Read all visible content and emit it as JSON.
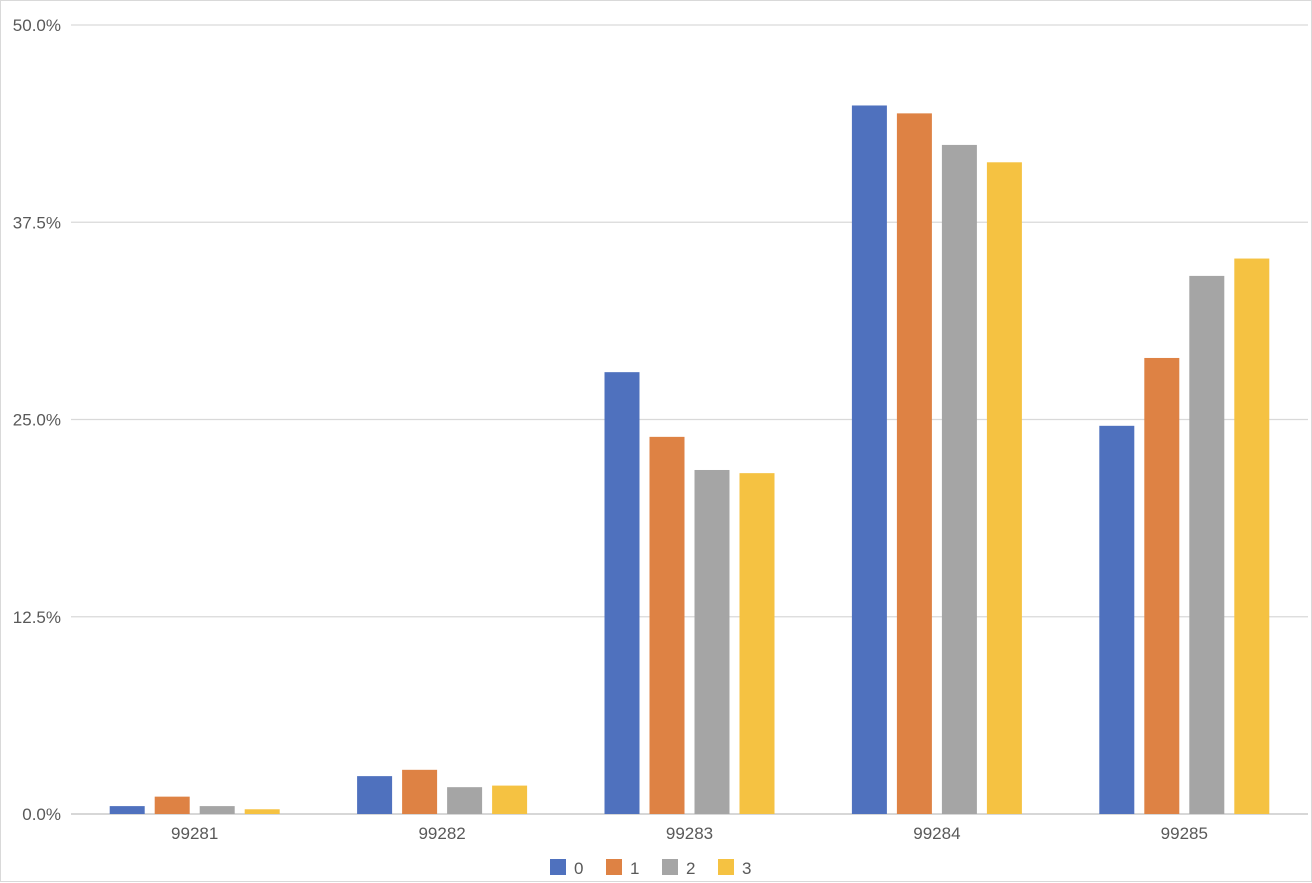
{
  "chart_data": {
    "type": "bar",
    "categories": [
      "99281",
      "99282",
      "99283",
      "99284",
      "99285"
    ],
    "series": [
      {
        "name": "0",
        "color": "#4f71be",
        "values": [
          0.5,
          2.4,
          28.0,
          44.9,
          24.6
        ]
      },
      {
        "name": "1",
        "color": "#de8244",
        "values": [
          1.1,
          2.8,
          23.9,
          44.4,
          28.9
        ]
      },
      {
        "name": "2",
        "color": "#a5a5a5",
        "values": [
          0.5,
          1.7,
          21.8,
          42.4,
          34.1
        ]
      },
      {
        "name": "3",
        "color": "#f5c242",
        "values": [
          0.3,
          1.8,
          21.6,
          41.3,
          35.2
        ]
      }
    ],
    "yticks": [
      "0.0%",
      "12.5%",
      "25.0%",
      "37.5%",
      "50.0%"
    ],
    "ylim": [
      0,
      50
    ],
    "grid": true,
    "legend_position": "bottom",
    "title": "",
    "xlabel": "",
    "ylabel": ""
  }
}
